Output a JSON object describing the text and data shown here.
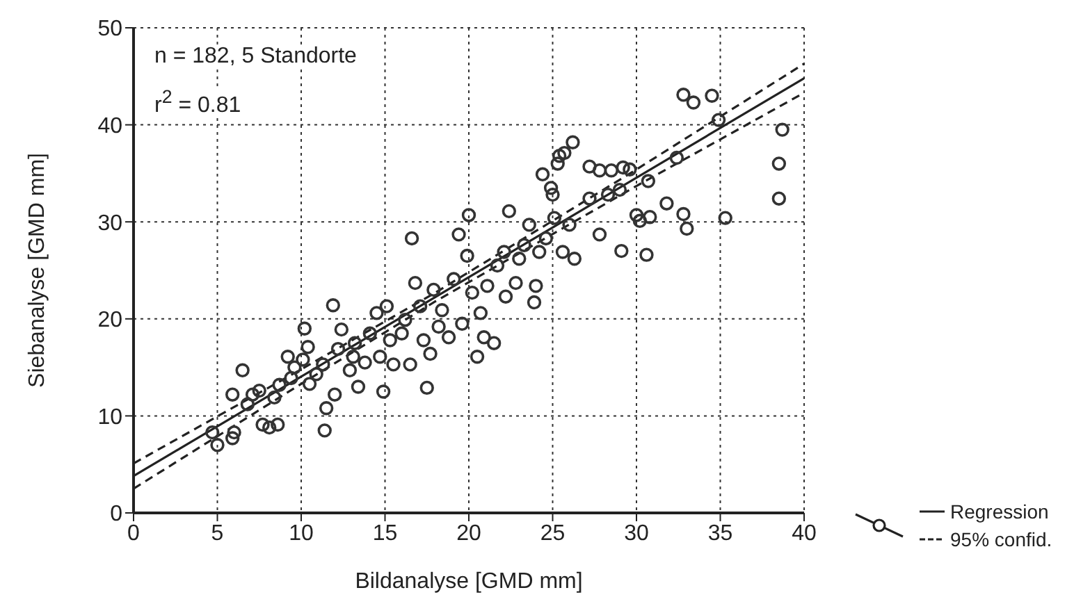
{
  "chart_data": {
    "type": "scatter",
    "xlabel": "Bildanalyse [GMD mm]",
    "ylabel": "Siebanalyse [GMD mm]",
    "annotations": [
      "n = 182, 5 Standorte",
      "r$^{2}$ = 0.81"
    ],
    "xlim": [
      0,
      40
    ],
    "xticks": [
      0,
      5,
      10,
      15,
      20,
      25,
      30,
      35,
      40
    ],
    "ylim": [
      0,
      50
    ],
    "yticks": [
      0,
      10,
      20,
      30,
      40,
      50
    ],
    "grid": true,
    "legend": "right",
    "series": [
      {
        "color": "#333333",
        "marker": "circle",
        "x": [
          4.7,
          5.0,
          5.9,
          6.0,
          5.9,
          6.5,
          6.8,
          7.1,
          7.5,
          7.7,
          8.1,
          8.6,
          8.4,
          8.7,
          9.2,
          9.4,
          9.6,
          10.1,
          10.4,
          10.2,
          10.5,
          10.9,
          11.3,
          11.4,
          11.5,
          12.0,
          11.9,
          12.2,
          12.4,
          12.9,
          13.1,
          13.2,
          13.4,
          13.8,
          14.1,
          14.5,
          14.7,
          14.9,
          15.1,
          15.3,
          15.5,
          16.0,
          16.2,
          16.5,
          16.6,
          16.8,
          17.1,
          17.3,
          17.5,
          17.7,
          17.9,
          18.2,
          18.4,
          18.8,
          19.1,
          19.4,
          19.6,
          19.9,
          20.0,
          20.2,
          20.5,
          20.7,
          20.9,
          21.1,
          21.5,
          21.7,
          22.1,
          22.2,
          22.4,
          22.8,
          23.0,
          23.3,
          23.6,
          23.9,
          24.0,
          24.2,
          24.4,
          24.6,
          24.9,
          25.1,
          25.3,
          25.6,
          25.7,
          26.2,
          26.0,
          26.3,
          27.2,
          27.8,
          28.3,
          28.5,
          29.1,
          29.2,
          29.6,
          30.0,
          30.2,
          30.6,
          30.8,
          31.8,
          32.4,
          32.8,
          33.0,
          32.8,
          33.4,
          34.5,
          34.9,
          35.3,
          38.7,
          38.5,
          38.5,
          30.7,
          27.2,
          27.8,
          29.0,
          25.4,
          25.0
        ],
        "values": [
          8.3,
          7.0,
          7.7,
          8.3,
          12.2,
          14.7,
          11.2,
          12.2,
          12.6,
          9.1,
          8.8,
          9.1,
          11.9,
          13.2,
          16.1,
          13.9,
          15.0,
          15.8,
          17.1,
          19.0,
          13.3,
          14.3,
          15.3,
          8.5,
          10.8,
          12.2,
          21.4,
          16.9,
          18.9,
          14.7,
          16.1,
          17.5,
          13.0,
          15.5,
          18.5,
          20.6,
          16.1,
          12.5,
          21.3,
          17.8,
          15.3,
          18.5,
          19.9,
          15.3,
          28.3,
          23.7,
          21.3,
          17.8,
          12.9,
          16.4,
          23.0,
          19.2,
          20.9,
          18.1,
          24.1,
          28.7,
          19.5,
          26.5,
          30.7,
          22.7,
          16.1,
          20.6,
          18.1,
          23.4,
          17.5,
          25.5,
          26.9,
          22.3,
          31.1,
          23.7,
          26.2,
          27.6,
          29.7,
          21.7,
          23.4,
          26.9,
          34.9,
          28.3,
          33.5,
          30.4,
          36.0,
          26.9,
          37.1,
          38.2,
          29.7,
          26.2,
          35.7,
          35.3,
          32.8,
          35.3,
          27.0,
          35.6,
          35.4,
          30.7,
          30.1,
          26.6,
          30.5,
          31.9,
          36.6,
          30.8,
          29.3,
          43.1,
          42.3,
          43.0,
          40.5,
          30.4,
          39.5,
          36.0,
          32.4,
          34.2,
          32.4,
          28.7,
          33.3,
          36.8,
          32.8
        ]
      },
      {
        "type": "line",
        "name": "Regression",
        "color": "#222222",
        "line_style": "solid",
        "x": [
          0,
          40
        ],
        "values": [
          3.8,
          44.8
        ]
      },
      {
        "type": "line",
        "name": "95% confid.",
        "color": "#222222",
        "line_style": "dashed",
        "x": [
          0,
          10,
          18,
          30,
          40
        ],
        "values": [
          5.1,
          14.8,
          22.7,
          35.4,
          46.3
        ]
      },
      {
        "type": "line",
        "color": "#222222",
        "line_style": "dashed",
        "x": [
          0,
          10,
          18,
          30,
          40
        ],
        "values": [
          2.5,
          13.3,
          21.8,
          33.7,
          43.3
        ]
      }
    ]
  }
}
